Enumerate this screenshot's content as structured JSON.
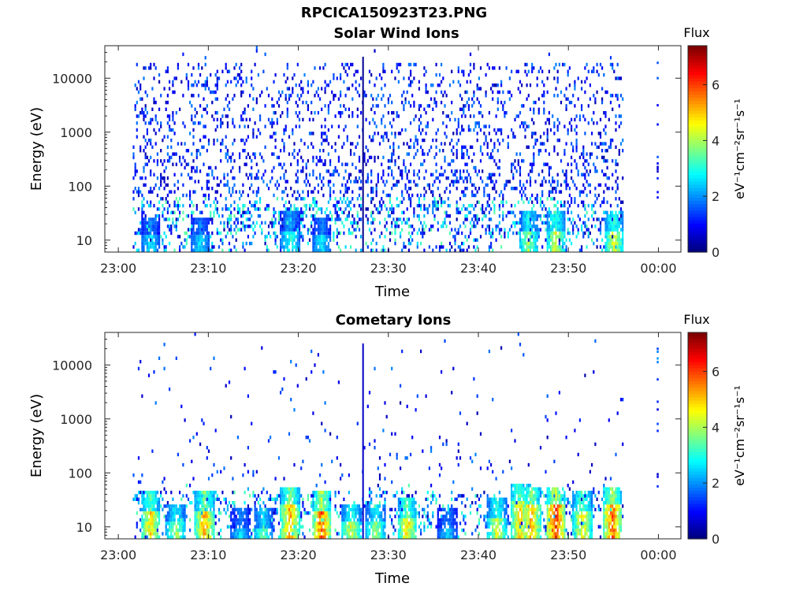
{
  "figure": {
    "title": "RPCICA150923T23.PNG"
  },
  "colorbar": {
    "label": "Flux",
    "unit_text": "eV⁻¹cm⁻²sr⁻¹s⁻¹",
    "range": [
      0,
      7.4
    ],
    "ticks": [
      "0",
      "2",
      "4",
      "6"
    ],
    "colormap": "jet"
  },
  "chart_data": [
    {
      "type": "heatmap",
      "title": "Solar Wind Ions",
      "xlabel": "Time",
      "ylabel": "Energy (eV)",
      "x_ticks": [
        "23:00",
        "23:10",
        "23:20",
        "23:30",
        "23:40",
        "23:50",
        "00:00"
      ],
      "x_range_minutes": [
        -1.5,
        62.5
      ],
      "y_scale": "log",
      "y_range": [
        6,
        40000
      ],
      "y_ticks": [
        "10",
        "100",
        "1000",
        "10000"
      ],
      "z_range": [
        0,
        7.4
      ],
      "data_time_range_minutes": [
        1.6,
        56.1
      ],
      "isolated_time_minutes": 59.9,
      "hot_spots": [
        {
          "t": 3.5,
          "e": 12,
          "v": 3
        },
        {
          "t": 9,
          "e": 12,
          "v": 3
        },
        {
          "t": 19,
          "e": 15,
          "v": 3.5
        },
        {
          "t": 22.5,
          "e": 12,
          "v": 3
        },
        {
          "t": 45.5,
          "e": 15,
          "v": 4.5
        },
        {
          "t": 48.5,
          "e": 15,
          "v": 5
        },
        {
          "t": 55,
          "e": 15,
          "v": 5
        }
      ]
    },
    {
      "type": "heatmap",
      "title": "Cometary Ions",
      "xlabel": "Time",
      "ylabel": "Energy (eV)",
      "x_ticks": [
        "23:00",
        "23:10",
        "23:20",
        "23:30",
        "23:40",
        "23:50",
        "00:00"
      ],
      "x_range_minutes": [
        -1.5,
        62.5
      ],
      "y_scale": "log",
      "y_range": [
        6,
        40000
      ],
      "y_ticks": [
        "10",
        "100",
        "1000",
        "10000"
      ],
      "z_range": [
        0,
        7.4
      ],
      "data_time_range_minutes": [
        1.6,
        56.1
      ],
      "isolated_time_minutes": 59.9,
      "hot_spots": [
        {
          "t": 3.5,
          "e": 20,
          "v": 5.5
        },
        {
          "t": 6.3,
          "e": 12,
          "v": 4.5
        },
        {
          "t": 9.5,
          "e": 20,
          "v": 6
        },
        {
          "t": 13.5,
          "e": 10,
          "v": 3
        },
        {
          "t": 16,
          "e": 10,
          "v": 4
        },
        {
          "t": 19,
          "e": 25,
          "v": 6
        },
        {
          "t": 22.5,
          "e": 20,
          "v": 6.5
        },
        {
          "t": 25.8,
          "e": 12,
          "v": 5
        },
        {
          "t": 28.5,
          "e": 12,
          "v": 4.5
        },
        {
          "t": 32,
          "e": 15,
          "v": 5.5
        },
        {
          "t": 36.5,
          "e": 10,
          "v": 3
        },
        {
          "t": 42,
          "e": 15,
          "v": 5
        },
        {
          "t": 44.5,
          "e": 30,
          "v": 5.5
        },
        {
          "t": 45.8,
          "e": 25,
          "v": 6
        },
        {
          "t": 48.5,
          "e": 25,
          "v": 7
        },
        {
          "t": 51.5,
          "e": 20,
          "v": 5.5
        },
        {
          "t": 54.8,
          "e": 25,
          "v": 6.5
        }
      ]
    }
  ]
}
